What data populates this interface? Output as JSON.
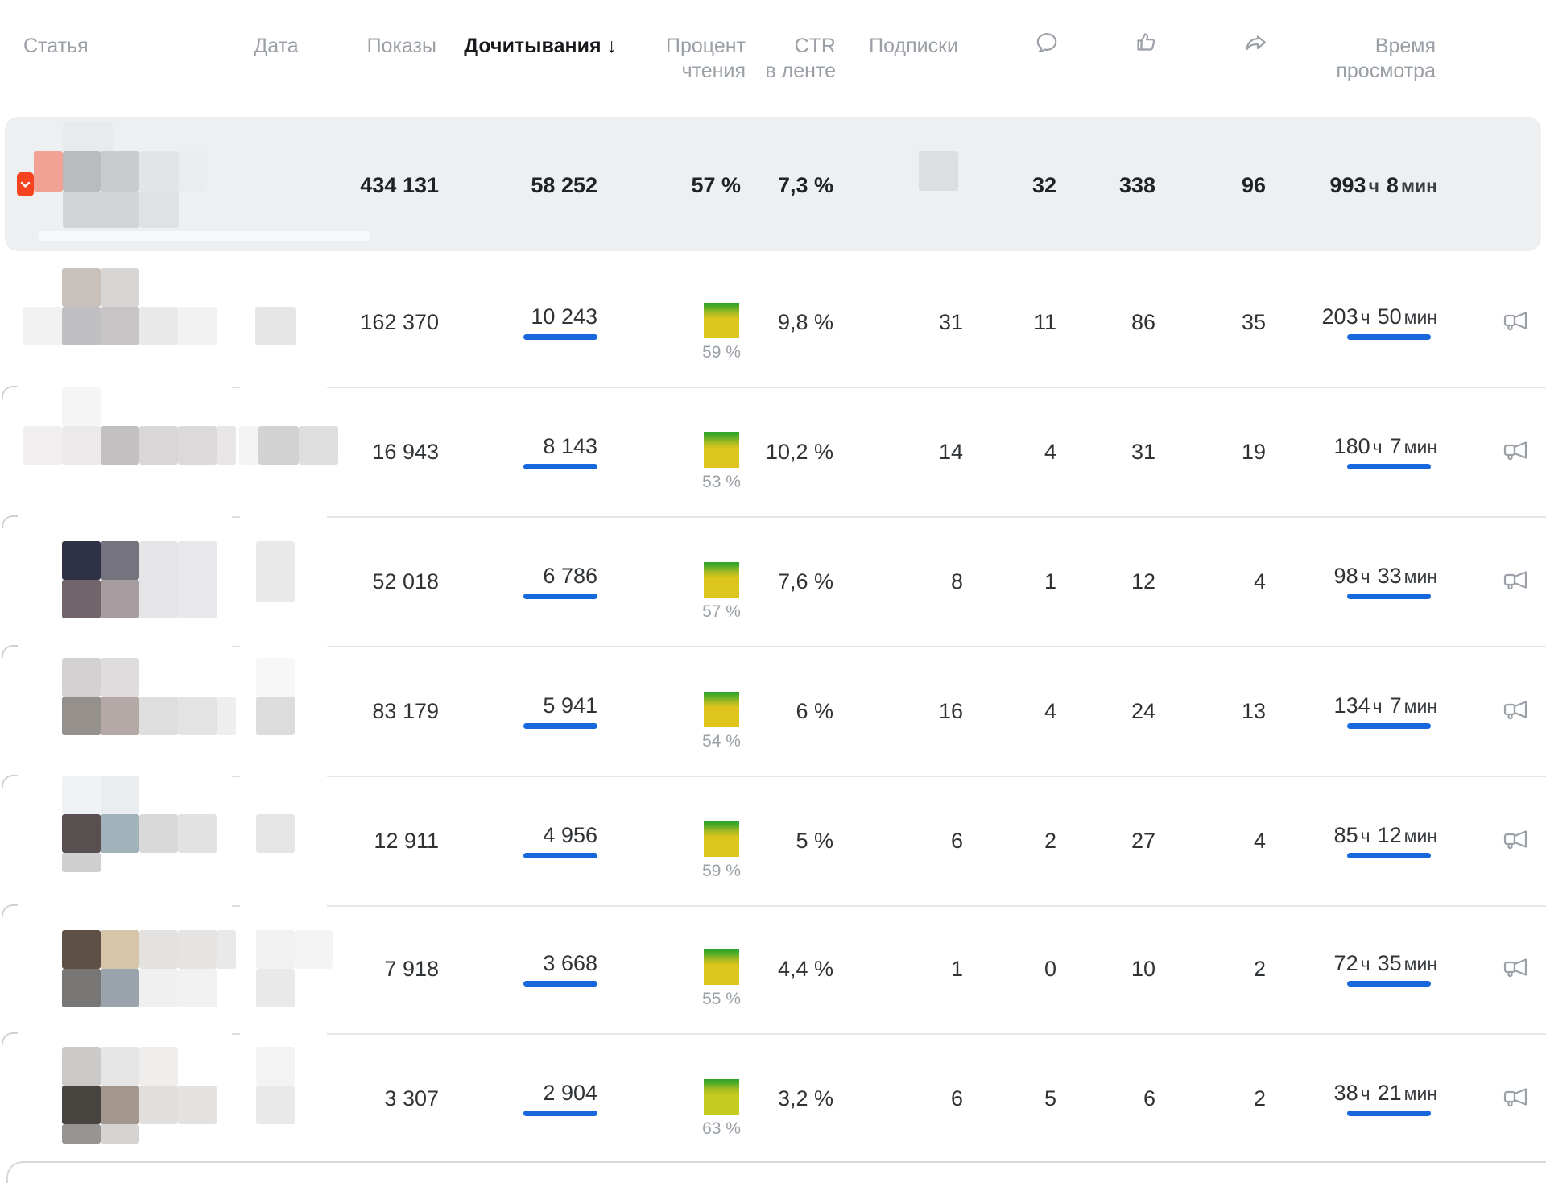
{
  "table": {
    "columns": {
      "article": "Статья",
      "date": "Дата",
      "impressions": "Показы",
      "reads": "Дочитывания",
      "sort_arrow": "↓",
      "read_percent_line1": "Процент",
      "read_percent_line2": "чтения",
      "ctr_line1": "CTR",
      "ctr_line2": "в ленте",
      "subscriptions": "Подписки",
      "comments_icon": "comment-bubble",
      "likes_icon": "thumbs-up",
      "shares_icon": "share-arrow",
      "watch_time_line1": "Время",
      "watch_time_line2": "просмотра"
    },
    "units": {
      "hours": "ч",
      "minutes": "мин"
    },
    "summary": {
      "impressions": "434 131",
      "reads": "58 252",
      "read_percent": "57 %",
      "ctr": "7,3 %",
      "comments": "32",
      "likes": "338",
      "shares": "96",
      "time_hours": "993",
      "time_minutes": "8"
    },
    "rows": [
      {
        "impressions": "162 370",
        "reads": "10 243",
        "read_percent": "59 %",
        "ctr": "9,8 %",
        "subscriptions": "31",
        "comments": "11",
        "likes": "86",
        "shares": "35",
        "time_hours": "203",
        "time_minutes": "50",
        "square_color": "#dcc51d"
      },
      {
        "impressions": "16 943",
        "reads": "8 143",
        "read_percent": "53 %",
        "ctr": "10,2 %",
        "subscriptions": "14",
        "comments": "4",
        "likes": "31",
        "shares": "19",
        "time_hours": "180",
        "time_minutes": "7",
        "square_color": "#dcc51d"
      },
      {
        "impressions": "52 018",
        "reads": "6 786",
        "read_percent": "57 %",
        "ctr": "7,6 %",
        "subscriptions": "8",
        "comments": "1",
        "likes": "12",
        "shares": "4",
        "time_hours": "98",
        "time_minutes": "33",
        "square_color": "#dcc51d"
      },
      {
        "impressions": "83 179",
        "reads": "5 941",
        "read_percent": "54 %",
        "ctr": "6 %",
        "subscriptions": "16",
        "comments": "4",
        "likes": "24",
        "shares": "13",
        "time_hours": "134",
        "time_minutes": "7",
        "square_color": "#dfc41c"
      },
      {
        "impressions": "12 911",
        "reads": "4 956",
        "read_percent": "59 %",
        "ctr": "5 %",
        "subscriptions": "6",
        "comments": "2",
        "likes": "27",
        "shares": "4",
        "time_hours": "85",
        "time_minutes": "12",
        "square_color": "#dcc51d"
      },
      {
        "impressions": "7 918",
        "reads": "3 668",
        "read_percent": "55 %",
        "ctr": "4,4 %",
        "subscriptions": "1",
        "comments": "0",
        "likes": "10",
        "shares": "2",
        "time_hours": "72",
        "time_minutes": "35",
        "square_color": "#dcc51d"
      },
      {
        "impressions": "3 307",
        "reads": "2 904",
        "read_percent": "63 %",
        "ctr": "3,2 %",
        "subscriptions": "6",
        "comments": "5",
        "likes": "6",
        "shares": "2",
        "time_hours": "38",
        "time_minutes": "21",
        "square_color": "#c6cb21"
      }
    ],
    "colors": {
      "accent_blue": "#1668dc",
      "summary_bg": "#edeff1",
      "badge_orange": "#f5431f",
      "square_green_top": "#2aa32a",
      "header_grey": "#9aa0a6",
      "text_dark": "#303336",
      "separator": "#e5e6e8",
      "icon_grey": "#9aa0a6"
    },
    "censor": {
      "summary_blocks": [
        [
          42,
          188,
          36,
          50,
          "#f2a294"
        ],
        [
          78,
          152,
          62,
          36,
          "#e9eaeb"
        ],
        [
          78,
          188,
          47,
          50,
          "#b9bbbe"
        ],
        [
          125,
          188,
          48,
          50,
          "#c9cbce"
        ],
        [
          173,
          188,
          49,
          50,
          "#e2e4e6"
        ],
        [
          222,
          188,
          35,
          50,
          "#eaecee"
        ],
        [
          78,
          238,
          95,
          45,
          "#d2d4d6"
        ],
        [
          173,
          238,
          49,
          45,
          "#dfe1e3"
        ],
        [
          1141,
          187,
          49,
          50,
          "#dcdedf"
        ]
      ],
      "row_blocks": [
        [
          [
            77,
            333,
            48,
            48,
            "#c9c2bc"
          ],
          [
            125,
            333,
            48,
            48,
            "#d8d6d5"
          ],
          [
            29,
            381,
            48,
            48,
            "#f3f2f2"
          ],
          [
            77,
            381,
            48,
            48,
            "#bfbec0"
          ],
          [
            125,
            381,
            48,
            48,
            "#c7c5c6"
          ],
          [
            173,
            381,
            48,
            48,
            "#e9e9e9"
          ],
          [
            221,
            381,
            48,
            48,
            "#f2f2f2"
          ],
          [
            317,
            381,
            50,
            48,
            "#e6e6e7"
          ]
        ],
        [
          [
            77,
            481,
            48,
            48,
            "#f6f5f5"
          ],
          [
            29,
            529,
            48,
            48,
            "#f0eeee"
          ],
          [
            77,
            529,
            48,
            48,
            "#ebe9e9"
          ],
          [
            125,
            529,
            48,
            48,
            "#c3c0c1"
          ],
          [
            173,
            529,
            48,
            48,
            "#d8d6d6"
          ],
          [
            221,
            529,
            48,
            48,
            "#dbd9d9"
          ],
          [
            269,
            529,
            24,
            48,
            "#e8e6e6"
          ],
          [
            297,
            529,
            24,
            48,
            "#f3f3f3"
          ],
          [
            321,
            529,
            50,
            48,
            "#d3d2d2"
          ],
          [
            371,
            529,
            49,
            48,
            "#dfdede"
          ]
        ],
        [
          [
            77,
            672,
            48,
            48,
            "#2f3147"
          ],
          [
            125,
            672,
            48,
            48,
            "#75737e"
          ],
          [
            173,
            672,
            48,
            96,
            "#e5e5e7"
          ],
          [
            221,
            672,
            48,
            96,
            "#e8e8ea"
          ],
          [
            77,
            720,
            48,
            48,
            "#71646a"
          ],
          [
            125,
            720,
            48,
            48,
            "#a79da0"
          ],
          [
            318,
            672,
            48,
            76,
            "#e9e9ea"
          ]
        ],
        [
          [
            77,
            817,
            48,
            48,
            "#d3d1d1"
          ],
          [
            125,
            817,
            48,
            48,
            "#dedcdd"
          ],
          [
            77,
            865,
            48,
            48,
            "#96908d"
          ],
          [
            125,
            865,
            48,
            48,
            "#b4a9a7"
          ],
          [
            173,
            865,
            48,
            48,
            "#dfdede"
          ],
          [
            221,
            865,
            48,
            48,
            "#e4e3e3"
          ],
          [
            269,
            865,
            24,
            48,
            "#efeeee"
          ],
          [
            318,
            817,
            48,
            48,
            "#f7f7f7"
          ],
          [
            318,
            865,
            48,
            48,
            "#dcdcdc"
          ]
        ],
        [
          [
            77,
            963,
            48,
            48,
            "#eef2f5"
          ],
          [
            125,
            963,
            48,
            48,
            "#e9edf0"
          ],
          [
            77,
            1011,
            48,
            48,
            "#584f50"
          ],
          [
            125,
            1011,
            48,
            48,
            "#a2b2ba"
          ],
          [
            173,
            1011,
            48,
            48,
            "#dad9d9"
          ],
          [
            221,
            1011,
            48,
            48,
            "#e3e2e2"
          ],
          [
            77,
            1059,
            48,
            24,
            "#d0cfd0"
          ],
          [
            318,
            1011,
            48,
            48,
            "#e5e5e5"
          ]
        ],
        [
          [
            77,
            1155,
            48,
            48,
            "#5e5045"
          ],
          [
            125,
            1155,
            48,
            48,
            "#d7c5a9"
          ],
          [
            173,
            1155,
            48,
            48,
            "#e3e2e1"
          ],
          [
            221,
            1155,
            48,
            48,
            "#e5e4e3"
          ],
          [
            269,
            1155,
            24,
            48,
            "#eae9e9"
          ],
          [
            77,
            1203,
            48,
            48,
            "#797775"
          ],
          [
            125,
            1203,
            48,
            48,
            "#9ba3ac"
          ],
          [
            173,
            1203,
            48,
            48,
            "#f0f0f0"
          ],
          [
            221,
            1203,
            48,
            48,
            "#f1f1f1"
          ],
          [
            318,
            1155,
            48,
            48,
            "#f2f1f1"
          ],
          [
            318,
            1203,
            48,
            48,
            "#eae9e9"
          ],
          [
            366,
            1155,
            47,
            48,
            "#f4f4f4"
          ]
        ],
        [
          [
            77,
            1300,
            48,
            48,
            "#cccac9"
          ],
          [
            125,
            1300,
            48,
            48,
            "#e7e6e6"
          ],
          [
            173,
            1300,
            48,
            48,
            "#efeeed"
          ],
          [
            77,
            1348,
            48,
            48,
            "#484440"
          ],
          [
            125,
            1348,
            48,
            48,
            "#a4978d"
          ],
          [
            173,
            1348,
            48,
            48,
            "#e0dfde"
          ],
          [
            221,
            1348,
            48,
            48,
            "#e3e2e1"
          ],
          [
            77,
            1396,
            48,
            24,
            "#979593"
          ],
          [
            125,
            1396,
            48,
            24,
            "#d5d4d3"
          ],
          [
            318,
            1300,
            48,
            48,
            "#f4f3f3"
          ],
          [
            318,
            1348,
            48,
            48,
            "#eae9e9"
          ]
        ]
      ]
    }
  }
}
